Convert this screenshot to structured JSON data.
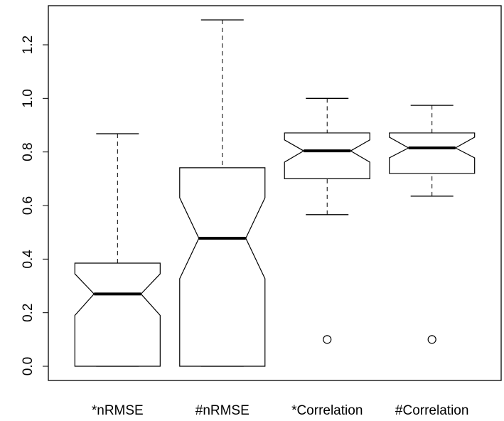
{
  "chart_data": {
    "type": "boxplot",
    "categories": [
      "*nRMSE",
      "#nRMSE",
      "*Correlation",
      "#Correlation"
    ],
    "boxes": [
      {
        "whisker_low": 0,
        "q1": 0,
        "notch_low": 0.19,
        "median": 0.27,
        "notch_high": 0.345,
        "q3": 0.385,
        "whisker_high": 0.868,
        "outliers": []
      },
      {
        "whisker_low": 0,
        "q1": 0,
        "notch_low": 0.327,
        "median": 0.478,
        "notch_high": 0.629,
        "q3": 0.741,
        "whisker_high": 1.293,
        "outliers": []
      },
      {
        "whisker_low": 0.566,
        "q1": 0.7,
        "notch_low": 0.762,
        "median": 0.804,
        "notch_high": 0.845,
        "q3": 0.871,
        "whisker_high": 1.0,
        "outliers": [
          0.1
        ]
      },
      {
        "whisker_low": 0.635,
        "q1": 0.72,
        "notch_low": 0.778,
        "median": 0.815,
        "notch_high": 0.855,
        "q3": 0.871,
        "whisker_high": 0.974,
        "outliers": [
          0.1
        ]
      }
    ],
    "color": "#000000",
    "ylim": [
      -0.053,
      1.346
    ],
    "yticks": [
      {
        "value": 0,
        "label": "0.0"
      },
      0.2,
      0.4,
      0.6,
      0.8,
      {
        "value": 1,
        "label": "1.0"
      },
      1.2
    ]
  }
}
